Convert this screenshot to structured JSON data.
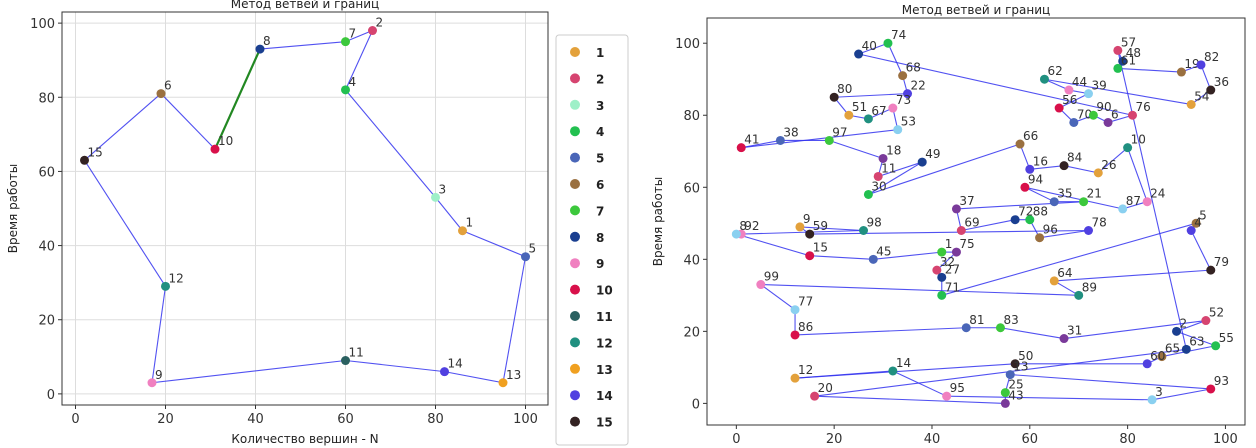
{
  "chart_data": [
    {
      "type": "scatter",
      "title": "Метод ветвей и границ",
      "xlabel": "Количество вершин -  N",
      "ylabel": "Время работы",
      "xlim": [
        -3,
        105
      ],
      "ylim": [
        -3,
        103
      ],
      "xticks": [
        0,
        20,
        40,
        60,
        80,
        100
      ],
      "yticks": [
        0,
        20,
        40,
        60,
        80,
        100
      ],
      "grid": true,
      "line_color": "#3333ee",
      "highlight_color": "#228822",
      "legend": "outside right",
      "points": [
        {
          "label": "1",
          "x": 86,
          "y": 44
        },
        {
          "label": "2",
          "x": 66,
          "y": 98
        },
        {
          "label": "3",
          "x": 80,
          "y": 53
        },
        {
          "label": "4",
          "x": 60,
          "y": 82
        },
        {
          "label": "5",
          "x": 100,
          "y": 37
        },
        {
          "label": "6",
          "x": 19,
          "y": 81
        },
        {
          "label": "7",
          "x": 60,
          "y": 95
        },
        {
          "label": "8",
          "x": 41,
          "y": 93
        },
        {
          "label": "9",
          "x": 17,
          "y": 3
        },
        {
          "label": "10",
          "x": 31,
          "y": 66
        },
        {
          "label": "11",
          "x": 60,
          "y": 9
        },
        {
          "label": "12",
          "x": 20,
          "y": 29
        },
        {
          "label": "13",
          "x": 95,
          "y": 3
        },
        {
          "label": "14",
          "x": 82,
          "y": 6
        },
        {
          "label": "15",
          "x": 2,
          "y": 63
        }
      ],
      "colors": [
        "#e3a13b",
        "#d64470",
        "#9ef0c8",
        "#22c050",
        "#4a66b8",
        "#9a7040",
        "#3cc83c",
        "#1a3f90",
        "#f080c0",
        "#d8104a",
        "#2a6060",
        "#209080",
        "#f0a020",
        "#5040e0",
        "#332222"
      ],
      "route": [
        14,
        5,
        9,
        7,
        6,
        1,
        3,
        2,
        0,
        4,
        12,
        13,
        10,
        8,
        11,
        14
      ],
      "highlight": 2
    },
    {
      "type": "scatter",
      "title": "Метод ветвей и границ",
      "ylabel": "Время работы",
      "xlim": [
        -6,
        104
      ],
      "ylim": [
        -6,
        107
      ],
      "xticks": [
        0,
        20,
        40,
        60,
        80,
        100
      ],
      "yticks": [
        0,
        20,
        40,
        60,
        80,
        100
      ],
      "grid": false,
      "line_color": "#3333ee",
      "highlight_color": "#228822",
      "palette": [
        "#d64470",
        "#1a3f90",
        "#22c050",
        "#9a7040",
        "#5040e0",
        "#332222",
        "#e3a13b",
        "#209080",
        "#f080c0",
        "#8ad0f0",
        "#d8104a",
        "#4a66b8",
        "#3cc83c",
        "#7a3a9a"
      ],
      "points": [
        {
          "label": "57",
          "x": 78,
          "y": 98
        },
        {
          "label": "48",
          "x": 79,
          "y": 95
        },
        {
          "label": "61",
          "x": 78,
          "y": 93
        },
        {
          "label": "19",
          "x": 91,
          "y": 92
        },
        {
          "label": "82",
          "x": 95,
          "y": 94
        },
        {
          "label": "36",
          "x": 97,
          "y": 87
        },
        {
          "label": "54",
          "x": 93,
          "y": 83
        },
        {
          "label": "62",
          "x": 63,
          "y": 90
        },
        {
          "label": "44",
          "x": 68,
          "y": 87
        },
        {
          "label": "39",
          "x": 72,
          "y": 86
        },
        {
          "label": "56",
          "x": 66,
          "y": 82
        },
        {
          "label": "70",
          "x": 69,
          "y": 78
        },
        {
          "label": "90",
          "x": 73,
          "y": 80
        },
        {
          "label": "6",
          "x": 76,
          "y": 78
        },
        {
          "label": "76",
          "x": 81,
          "y": 80
        },
        {
          "label": "40",
          "x": 25,
          "y": 97
        },
        {
          "label": "74",
          "x": 31,
          "y": 100
        },
        {
          "label": "68",
          "x": 34,
          "y": 91
        },
        {
          "label": "22",
          "x": 35,
          "y": 86
        },
        {
          "label": "80",
          "x": 20,
          "y": 85
        },
        {
          "label": "51",
          "x": 23,
          "y": 80
        },
        {
          "label": "67",
          "x": 27,
          "y": 79
        },
        {
          "label": "73",
          "x": 32,
          "y": 82
        },
        {
          "label": "53",
          "x": 33,
          "y": 76
        },
        {
          "label": "41",
          "x": 1,
          "y": 71
        },
        {
          "label": "38",
          "x": 9,
          "y": 73
        },
        {
          "label": "97",
          "x": 19,
          "y": 73
        },
        {
          "label": "18",
          "x": 30,
          "y": 68
        },
        {
          "label": "11",
          "x": 29,
          "y": 63
        },
        {
          "label": "49",
          "x": 38,
          "y": 67
        },
        {
          "label": "30",
          "x": 27,
          "y": 58
        },
        {
          "label": "66",
          "x": 58,
          "y": 72
        },
        {
          "label": "16",
          "x": 60,
          "y": 65
        },
        {
          "label": "84",
          "x": 67,
          "y": 66
        },
        {
          "label": "26",
          "x": 74,
          "y": 64
        },
        {
          "label": "10",
          "x": 80,
          "y": 71
        },
        {
          "label": "24",
          "x": 84,
          "y": 56
        },
        {
          "label": "87",
          "x": 79,
          "y": 54
        },
        {
          "label": "94",
          "x": 59,
          "y": 60
        },
        {
          "label": "35",
          "x": 65,
          "y": 56
        },
        {
          "label": "21",
          "x": 71,
          "y": 56
        },
        {
          "label": "37",
          "x": 45,
          "y": 54
        },
        {
          "label": "69",
          "x": 46,
          "y": 48
        },
        {
          "label": "72",
          "x": 57,
          "y": 51
        },
        {
          "label": "88",
          "x": 60,
          "y": 51
        },
        {
          "label": "96",
          "x": 62,
          "y": 46
        },
        {
          "label": "78",
          "x": 72,
          "y": 48
        },
        {
          "label": "59",
          "x": 15,
          "y": 47
        },
        {
          "label": "9",
          "x": 13,
          "y": 49
        },
        {
          "label": "98",
          "x": 26,
          "y": 48
        },
        {
          "label": "92",
          "x": 1,
          "y": 47
        },
        {
          "label": "8",
          "x": 0,
          "y": 47
        },
        {
          "label": "15",
          "x": 15,
          "y": 41
        },
        {
          "label": "45",
          "x": 28,
          "y": 40
        },
        {
          "label": "1",
          "x": 42,
          "y": 42
        },
        {
          "label": "75",
          "x": 45,
          "y": 42
        },
        {
          "label": "32",
          "x": 41,
          "y": 37
        },
        {
          "label": "27",
          "x": 42,
          "y": 35
        },
        {
          "label": "71",
          "x": 42,
          "y": 30
        },
        {
          "label": "5",
          "x": 94,
          "y": 50
        },
        {
          "label": "4",
          "x": 93,
          "y": 48
        },
        {
          "label": "79",
          "x": 97,
          "y": 37
        },
        {
          "label": "64",
          "x": 65,
          "y": 34
        },
        {
          "label": "89",
          "x": 70,
          "y": 30
        },
        {
          "label": "99",
          "x": 5,
          "y": 33
        },
        {
          "label": "77",
          "x": 12,
          "y": 26
        },
        {
          "label": "86",
          "x": 12,
          "y": 19
        },
        {
          "label": "81",
          "x": 47,
          "y": 21
        },
        {
          "label": "83",
          "x": 54,
          "y": 21
        },
        {
          "label": "31",
          "x": 67,
          "y": 18
        },
        {
          "label": "52",
          "x": 96,
          "y": 23
        },
        {
          "label": "2",
          "x": 90,
          "y": 20
        },
        {
          "label": "55",
          "x": 98,
          "y": 16
        },
        {
          "label": "65",
          "x": 87,
          "y": 13
        },
        {
          "label": "60",
          "x": 84,
          "y": 11
        },
        {
          "label": "50",
          "x": 57,
          "y": 11
        },
        {
          "label": "12",
          "x": 12,
          "y": 7
        },
        {
          "label": "14",
          "x": 32,
          "y": 9
        },
        {
          "label": "95",
          "x": 43,
          "y": 2
        },
        {
          "label": "3",
          "x": 85,
          "y": 1
        },
        {
          "label": "93",
          "x": 97,
          "y": 4
        },
        {
          "label": "13",
          "x": 56,
          "y": 8
        },
        {
          "label": "25",
          "x": 55,
          "y": 3
        },
        {
          "label": "43",
          "x": 55,
          "y": 0
        },
        {
          "label": "20",
          "x": 16,
          "y": 2
        },
        {
          "label": "63",
          "x": 92,
          "y": 15
        }
      ],
      "highlight": 87
    }
  ]
}
